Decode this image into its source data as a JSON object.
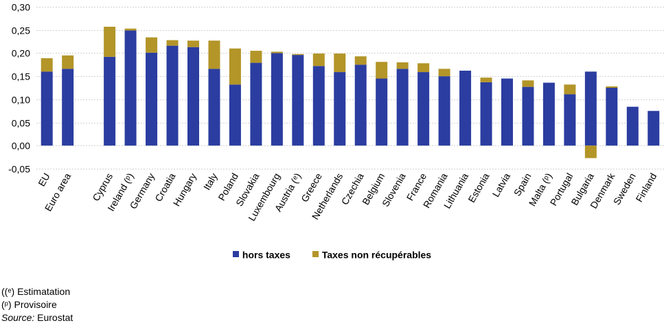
{
  "chart_data": {
    "type": "bar",
    "stacked": true,
    "categories": [
      "EU",
      "Euro area",
      "",
      "Cyprus",
      "Ireland (ᵖ)",
      "Germany",
      "Croatia",
      "Hungary",
      "Italy",
      "Poland",
      "Slovakia",
      "Luxembourg",
      "Austria (ᵉ)",
      "Greece",
      "Netherlands",
      "Czechia",
      "Belgium",
      "Slovenia",
      "France",
      "Romania",
      "Lithuania",
      "Estonia",
      "Latvia",
      "Spain",
      "Malta (ᵖ)",
      "Portugal",
      "Bulgaria",
      "Denmark",
      "Sweden",
      "Finland"
    ],
    "series": [
      {
        "name": "hors  taxes",
        "color": "#2B3DA0",
        "values": [
          0.16,
          0.166,
          null,
          0.192,
          0.249,
          0.201,
          0.216,
          0.213,
          0.166,
          0.132,
          0.179,
          0.2,
          0.196,
          0.172,
          0.159,
          0.175,
          0.145,
          0.166,
          0.159,
          0.15,
          0.162,
          0.137,
          0.145,
          0.127,
          0.136,
          0.111,
          0.16,
          0.125,
          0.084,
          0.075
        ]
      },
      {
        "name": "Taxes non récupérables",
        "color": "#B39528",
        "values": [
          0.029,
          0.029,
          null,
          0.065,
          0.004,
          0.033,
          0.012,
          0.014,
          0.061,
          0.078,
          0.026,
          0.003,
          0.002,
          0.027,
          0.04,
          0.018,
          0.036,
          0.014,
          0.019,
          0.016,
          0.0,
          0.01,
          0.0,
          0.014,
          0.0,
          0.021,
          -0.027,
          0.003,
          0.0,
          0.0
        ]
      }
    ],
    "yticks": [
      "0,30",
      "0,25",
      "0,20",
      "0,15",
      "0,10",
      "0,05",
      "0,00",
      "-0,05"
    ],
    "ylim": [
      -0.05,
      0.3
    ],
    "grid": true,
    "legend_position": "bottom"
  },
  "legend": {
    "series1": "hors  taxes",
    "series2": "Taxes non récupérables"
  },
  "notes": {
    "estimate": "((ᵉ) Estimatation",
    "provisional": "(ᵖ) Provisoire",
    "source_label": "Source:",
    "source_value": " Eurostat"
  }
}
